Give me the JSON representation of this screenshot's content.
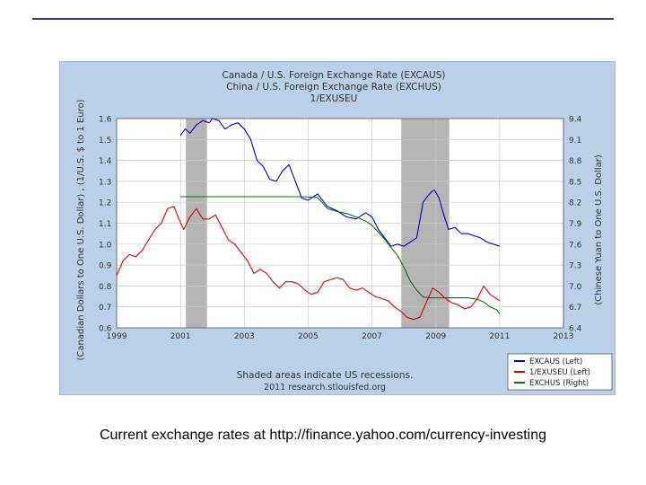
{
  "caption": "Current exchange rates at http://finance.yahoo.com/currency-investing",
  "chart_data": {
    "type": "line",
    "title": [
      "Canada / U.S. Foreign Exchange Rate (EXCAUS)",
      "China / U.S. Foreign Exchange Rate (EXCHUS)",
      "1/EXUSEU"
    ],
    "ylabel_left": "(Canadian Dollars to One U.S. Dollar) , (1/U.S. $ to 1 Euro)",
    "ylabel_right": "(Chinese Yuan to One U.S. Dollar)",
    "x_ticks": [
      "1999",
      "2001",
      "2003",
      "2005",
      "2007",
      "2009",
      "2011",
      "2013"
    ],
    "xlim": [
      1999,
      2013
    ],
    "y_left_ticks": [
      "0.6",
      "0.7",
      "0.8",
      "0.9",
      "1.0",
      "1.1",
      "1.2",
      "1.3",
      "1.4",
      "1.5",
      "1.6"
    ],
    "ylim_left": [
      0.6,
      1.6
    ],
    "y_right_ticks": [
      "6.4",
      "6.7",
      "7.0",
      "7.3",
      "7.6",
      "7.9",
      "8.2",
      "8.5",
      "8.8",
      "9.1",
      "9.4"
    ],
    "ylim_right": [
      6.4,
      9.4
    ],
    "recessions": [
      [
        2001.17,
        2001.83
      ],
      [
        2007.92,
        2009.42
      ]
    ],
    "note": "Shaded areas indicate US recessions.",
    "source": "2011 research.stlouisfed.org",
    "colors": {
      "panel": "#b9d0e8",
      "plot": "#ffffff",
      "grid": "#c8c8c8",
      "recession": "#b4b4b4"
    },
    "series": [
      {
        "name": "EXCAUS (Left)",
        "axis": "left",
        "color": "#0000cc",
        "x": [
          2001.0,
          2001.15,
          2001.3,
          2001.5,
          2001.7,
          2001.9,
          2002.0,
          2002.2,
          2002.4,
          2002.6,
          2002.8,
          2003.0,
          2003.2,
          2003.4,
          2003.6,
          2003.8,
          2004.0,
          2004.2,
          2004.4,
          2004.6,
          2004.8,
          2005.0,
          2005.3,
          2005.6,
          2005.9,
          2006.2,
          2006.5,
          2006.8,
          2007.0,
          2007.2,
          2007.4,
          2007.6,
          2007.8,
          2008.0,
          2008.2,
          2008.4,
          2008.6,
          2008.8,
          2008.95,
          2009.1,
          2009.25,
          2009.4,
          2009.6,
          2009.8,
          2010.0,
          2010.2,
          2010.4,
          2010.6,
          2010.8,
          2011.0
        ],
        "values": [
          1.52,
          1.55,
          1.53,
          1.57,
          1.59,
          1.58,
          1.6,
          1.59,
          1.55,
          1.57,
          1.58,
          1.55,
          1.5,
          1.4,
          1.37,
          1.31,
          1.3,
          1.35,
          1.38,
          1.3,
          1.22,
          1.21,
          1.24,
          1.18,
          1.16,
          1.13,
          1.12,
          1.15,
          1.13,
          1.07,
          1.03,
          0.99,
          1.0,
          0.99,
          1.01,
          1.03,
          1.2,
          1.24,
          1.26,
          1.22,
          1.14,
          1.07,
          1.08,
          1.05,
          1.05,
          1.04,
          1.03,
          1.01,
          1.0,
          0.99
        ]
      },
      {
        "name": "1/EXUSEU (Left)",
        "axis": "left",
        "color": "#dd0000",
        "x": [
          1999.0,
          1999.2,
          1999.4,
          1999.6,
          1999.8,
          2000.0,
          2000.2,
          2000.4,
          2000.6,
          2000.8,
          2000.95,
          2001.1,
          2001.3,
          2001.5,
          2001.7,
          2001.9,
          2002.1,
          2002.3,
          2002.5,
          2002.7,
          2002.9,
          2003.1,
          2003.3,
          2003.5,
          2003.7,
          2003.9,
          2004.1,
          2004.3,
          2004.5,
          2004.7,
          2004.9,
          2005.1,
          2005.3,
          2005.5,
          2005.7,
          2005.9,
          2006.1,
          2006.3,
          2006.5,
          2006.7,
          2006.9,
          2007.1,
          2007.3,
          2007.5,
          2007.7,
          2007.9,
          2008.1,
          2008.3,
          2008.5,
          2008.7,
          2008.9,
          2009.1,
          2009.3,
          2009.5,
          2009.7,
          2009.9,
          2010.1,
          2010.3,
          2010.5,
          2010.7,
          2010.9,
          2011.0
        ],
        "values": [
          0.85,
          0.92,
          0.95,
          0.94,
          0.97,
          1.02,
          1.07,
          1.1,
          1.17,
          1.18,
          1.12,
          1.07,
          1.13,
          1.17,
          1.12,
          1.12,
          1.14,
          1.08,
          1.02,
          1.0,
          0.96,
          0.92,
          0.86,
          0.88,
          0.86,
          0.82,
          0.79,
          0.82,
          0.82,
          0.81,
          0.78,
          0.76,
          0.77,
          0.82,
          0.83,
          0.84,
          0.83,
          0.79,
          0.78,
          0.79,
          0.77,
          0.75,
          0.74,
          0.73,
          0.7,
          0.68,
          0.65,
          0.64,
          0.65,
          0.72,
          0.79,
          0.77,
          0.74,
          0.72,
          0.71,
          0.69,
          0.7,
          0.74,
          0.8,
          0.76,
          0.74,
          0.73
        ]
      },
      {
        "name": "EXCHUS (Right)",
        "axis": "right",
        "color": "#007a00",
        "x": [
          2001.0,
          2002.0,
          2003.0,
          2004.0,
          2004.8,
          2005.3,
          2005.6,
          2005.9,
          2006.2,
          2006.5,
          2006.8,
          2007.0,
          2007.2,
          2007.4,
          2007.6,
          2007.8,
          2008.0,
          2008.2,
          2008.4,
          2008.6,
          2008.8,
          2009.0,
          2009.5,
          2010.0,
          2010.3,
          2010.5,
          2010.7,
          2010.9,
          2011.0
        ],
        "values": [
          8.28,
          8.28,
          8.28,
          8.28,
          8.28,
          8.27,
          8.11,
          8.07,
          8.04,
          7.99,
          7.93,
          7.87,
          7.77,
          7.67,
          7.55,
          7.44,
          7.27,
          7.07,
          6.94,
          6.84,
          6.83,
          6.83,
          6.83,
          6.83,
          6.81,
          6.77,
          6.7,
          6.66,
          6.6
        ]
      }
    ]
  }
}
